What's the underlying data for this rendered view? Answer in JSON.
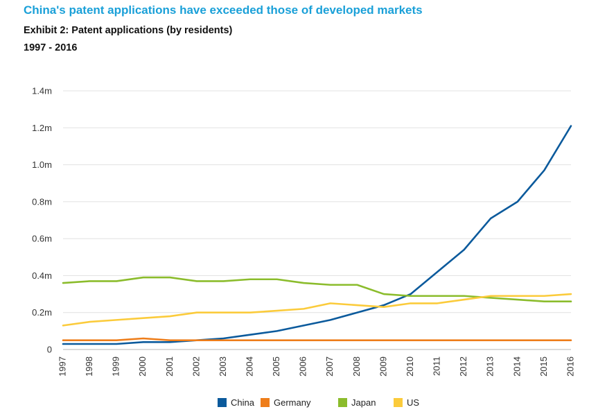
{
  "header": {
    "headline": "China's patent applications have exceeded those of developed markets",
    "subtitle": "Exhibit 2: Patent applications (by residents)",
    "range": "1997 - 2016"
  },
  "chart_data": {
    "type": "line",
    "title": "Exhibit 2: Patent applications (by residents)",
    "xlabel": "",
    "ylabel": "",
    "x": [
      "1997",
      "1998",
      "1999",
      "2000",
      "2001",
      "2002",
      "2003",
      "2004",
      "2005",
      "2006",
      "2007",
      "2008",
      "2009",
      "2010",
      "2011",
      "2012",
      "2013",
      "2014",
      "2015",
      "2016"
    ],
    "ylim": [
      0,
      1.4
    ],
    "y_ticks": [
      0,
      0.2,
      0.4,
      0.6,
      0.8,
      1.0,
      1.2,
      1.4
    ],
    "y_tick_labels": [
      "0",
      "0.2m",
      "0.4m",
      "0.6m",
      "0.8m",
      "1.0m",
      "1.2m",
      "1.4m"
    ],
    "grid": true,
    "legend_position": "bottom-center",
    "series": [
      {
        "name": "China",
        "color": "#0b5a9c",
        "values": [
          0.03,
          0.03,
          0.03,
          0.04,
          0.04,
          0.05,
          0.06,
          0.08,
          0.1,
          0.13,
          0.16,
          0.2,
          0.24,
          0.3,
          0.42,
          0.54,
          0.71,
          0.8,
          0.97,
          1.21
        ]
      },
      {
        "name": "Germany",
        "color": "#ee7d1a",
        "values": [
          0.05,
          0.05,
          0.05,
          0.06,
          0.05,
          0.05,
          0.05,
          0.05,
          0.05,
          0.05,
          0.05,
          0.05,
          0.05,
          0.05,
          0.05,
          0.05,
          0.05,
          0.05,
          0.05,
          0.05
        ]
      },
      {
        "name": "Japan",
        "color": "#8bbc2c",
        "values": [
          0.36,
          0.37,
          0.37,
          0.39,
          0.39,
          0.37,
          0.37,
          0.38,
          0.38,
          0.36,
          0.35,
          0.35,
          0.3,
          0.29,
          0.29,
          0.29,
          0.28,
          0.27,
          0.26,
          0.26
        ]
      },
      {
        "name": "US",
        "color": "#fbcb3b",
        "values": [
          0.13,
          0.15,
          0.16,
          0.17,
          0.18,
          0.2,
          0.2,
          0.2,
          0.21,
          0.22,
          0.25,
          0.24,
          0.23,
          0.25,
          0.25,
          0.27,
          0.29,
          0.29,
          0.29,
          0.3
        ]
      }
    ]
  }
}
